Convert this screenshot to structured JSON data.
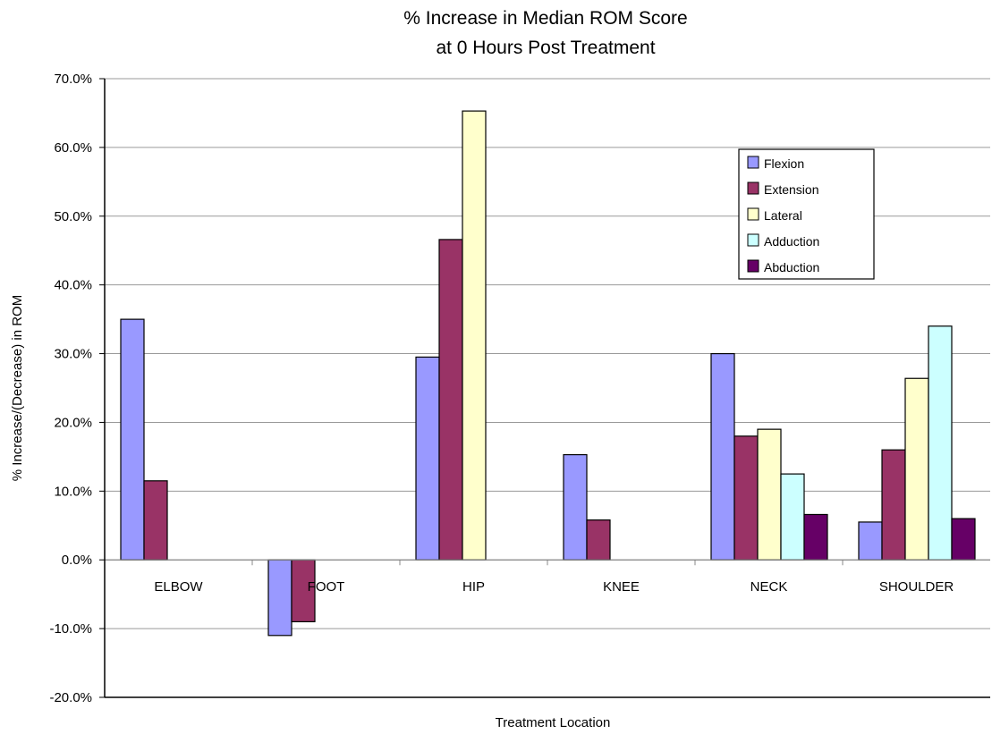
{
  "chart_data": {
    "type": "bar",
    "title_lines": [
      "% Increase in Median ROM Score",
      "at 0 Hours Post Treatment"
    ],
    "xlabel": "Treatment Location",
    "ylabel": "% Increase/(Decrease) in ROM",
    "ylim": [
      -20,
      70
    ],
    "yticks": [
      70,
      60,
      50,
      40,
      30,
      20,
      10,
      0,
      -10,
      -20
    ],
    "ytick_labels": [
      "70.0%",
      "60.0%",
      "50.0%",
      "40.0%",
      "30.0%",
      "20.0%",
      "10.0%",
      "0.0%",
      "-10.0%",
      "-20.0%"
    ],
    "grid": true,
    "legend_position": "top-right",
    "categories": [
      "ELBOW",
      "FOOT",
      "HIP",
      "KNEE",
      "NECK",
      "SHOULDER"
    ],
    "series": [
      {
        "name": "Flexion",
        "color": "#9999ff",
        "values": [
          35.0,
          -11.0,
          29.5,
          15.3,
          30.0,
          5.5
        ]
      },
      {
        "name": "Extension",
        "color": "#993366",
        "values": [
          11.5,
          -9.0,
          46.6,
          5.8,
          18.0,
          16.0
        ]
      },
      {
        "name": "Lateral",
        "color": "#ffffcc",
        "values": [
          null,
          null,
          65.3,
          null,
          19.0,
          26.4
        ]
      },
      {
        "name": "Adduction",
        "color": "#ccffff",
        "values": [
          null,
          null,
          null,
          null,
          12.5,
          34.0
        ]
      },
      {
        "name": "Abduction",
        "color": "#660066",
        "values": [
          null,
          null,
          null,
          null,
          6.6,
          6.0
        ]
      }
    ]
  }
}
